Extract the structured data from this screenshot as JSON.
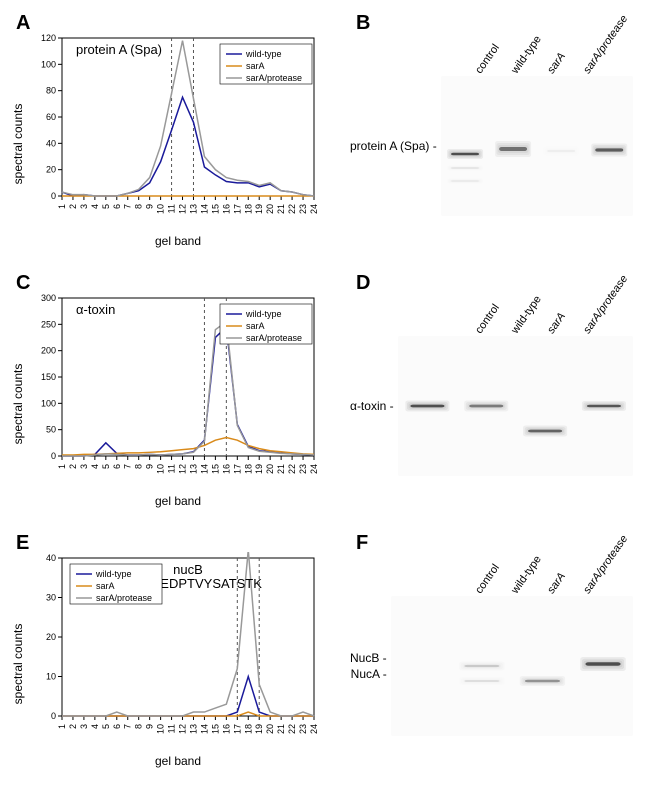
{
  "panels": {
    "A": {
      "label": "A",
      "title": "protein A (Spa)"
    },
    "B": {
      "label": "B",
      "row_label": "protein A (Spa) -"
    },
    "C": {
      "label": "C",
      "title": "α-toxin"
    },
    "D": {
      "label": "D",
      "row_label": "α-toxin -"
    },
    "E": {
      "label": "E",
      "title_line1": "nucB",
      "title_line2": "70-SGSEDPTVYSATSTK"
    },
    "F": {
      "label": "F",
      "row_label1": "NucB -",
      "row_label2": "NucA -"
    }
  },
  "axes": {
    "x_label": "gel band",
    "y_label": "spectral counts",
    "x_ticks": [
      1,
      2,
      3,
      4,
      5,
      6,
      7,
      8,
      9,
      10,
      11,
      12,
      13,
      14,
      15,
      16,
      17,
      18,
      19,
      20,
      21,
      22,
      23,
      24
    ]
  },
  "legend": {
    "items": [
      {
        "label": "wild-type",
        "color": "#1a1a9a"
      },
      {
        "label": "sarA",
        "color": "#d98a1a"
      },
      {
        "label": "sarA/protease",
        "color": "#999999"
      }
    ]
  },
  "gel_lanes": [
    "control",
    "wild-type",
    "sarA",
    "sarA/protease"
  ],
  "charts": {
    "A": {
      "ylim": [
        0,
        120
      ],
      "ytick_step": 20,
      "vlines": [
        11,
        13
      ],
      "series": {
        "wild-type": [
          3,
          0,
          1,
          0,
          0,
          0,
          2,
          4,
          10,
          26,
          50,
          75,
          56,
          22,
          16,
          11,
          10,
          10,
          7,
          9,
          4,
          3,
          1,
          0
        ],
        "sarA": [
          0,
          0,
          0,
          0,
          0,
          0,
          0,
          0,
          0,
          0,
          0,
          0,
          0,
          0,
          0,
          0,
          0,
          0,
          0,
          0,
          0,
          0,
          0,
          0
        ],
        "sarA/protease": [
          3,
          1,
          1,
          0,
          0,
          0,
          2,
          5,
          14,
          38,
          78,
          118,
          74,
          30,
          20,
          14,
          12,
          11,
          8,
          10,
          4,
          3,
          1,
          0
        ]
      }
    },
    "C": {
      "ylim": [
        0,
        300
      ],
      "ytick_step": 50,
      "vlines": [
        14,
        16
      ],
      "series": {
        "wild-type": [
          0,
          0,
          0,
          3,
          25,
          5,
          2,
          2,
          3,
          2,
          3,
          4,
          8,
          30,
          225,
          245,
          60,
          18,
          10,
          8,
          6,
          4,
          3,
          2
        ],
        "sarA": [
          2,
          2,
          3,
          3,
          4,
          5,
          6,
          6,
          7,
          8,
          10,
          12,
          14,
          20,
          30,
          35,
          30,
          20,
          14,
          10,
          8,
          6,
          4,
          3
        ],
        "sarA/protease": [
          0,
          0,
          0,
          2,
          4,
          3,
          2,
          2,
          3,
          2,
          3,
          4,
          7,
          28,
          240,
          255,
          58,
          16,
          9,
          7,
          5,
          4,
          3,
          2
        ]
      }
    },
    "E": {
      "ylim": [
        0,
        40
      ],
      "ytick_step": 10,
      "vlines": [
        17,
        19
      ],
      "series": {
        "wild-type": [
          0,
          0,
          0,
          0,
          0,
          0,
          0,
          0,
          0,
          0,
          0,
          0,
          0,
          0,
          0,
          0,
          1,
          10,
          1,
          0,
          0,
          0,
          0,
          0
        ],
        "sarA": [
          0,
          0,
          0,
          0,
          0,
          0,
          0,
          0,
          0,
          0,
          0,
          0,
          0,
          0,
          0,
          0,
          0,
          1,
          0,
          0,
          0,
          0,
          0,
          0
        ],
        "sarA/protease": [
          0,
          0,
          0,
          0,
          0,
          1,
          0,
          0,
          0,
          0,
          0,
          0,
          1,
          1,
          2,
          3,
          12,
          42,
          8,
          1,
          0,
          0,
          1,
          0
        ]
      }
    }
  },
  "gels": {
    "B": {
      "height": 140,
      "bands": [
        {
          "lane": 0,
          "y": 78,
          "h": 8,
          "intensity": 1.0,
          "blur": 1
        },
        {
          "lane": 1,
          "y": 73,
          "h": 10,
          "intensity": 0.75,
          "blur": 3
        },
        {
          "lane": 2,
          "y": 75,
          "h": 5,
          "intensity": 0.06,
          "blur": 2
        },
        {
          "lane": 3,
          "y": 74,
          "h": 9,
          "intensity": 0.9,
          "blur": 2
        }
      ],
      "extras": [
        {
          "lane": 0,
          "y": 92,
          "h": 3,
          "intensity": 0.15,
          "blur": 1
        },
        {
          "lane": 0,
          "y": 105,
          "h": 3,
          "intensity": 0.1,
          "blur": 1
        }
      ]
    },
    "D": {
      "height": 140,
      "bands": [
        {
          "lane": 0,
          "y": 70,
          "h": 9,
          "intensity": 1.0,
          "blur": 1
        },
        {
          "lane": 1,
          "y": 70,
          "h": 7,
          "intensity": 0.7,
          "blur": 2
        },
        {
          "lane": 2,
          "y": 95,
          "h": 7,
          "intensity": 0.85,
          "blur": 2
        },
        {
          "lane": 3,
          "y": 70,
          "h": 8,
          "intensity": 0.95,
          "blur": 1
        }
      ]
    },
    "F": {
      "height": 140,
      "bands": [
        {
          "lane": 1,
          "y": 70,
          "h": 5,
          "intensity": 0.25,
          "blur": 2
        },
        {
          "lane": 1,
          "y": 85,
          "h": 4,
          "intensity": 0.15,
          "blur": 2
        },
        {
          "lane": 2,
          "y": 85,
          "h": 6,
          "intensity": 0.55,
          "blur": 2
        },
        {
          "lane": 3,
          "y": 68,
          "h": 12,
          "intensity": 1.0,
          "blur": 1
        }
      ]
    }
  },
  "style": {
    "axis_color": "#000000",
    "tick_fontsize": 9,
    "label_fontsize": 12,
    "panel_label_fontsize": 20,
    "title_fontsize": 13,
    "grid_dash": "3,3",
    "line_width": 1.5,
    "background": "#ffffff"
  }
}
